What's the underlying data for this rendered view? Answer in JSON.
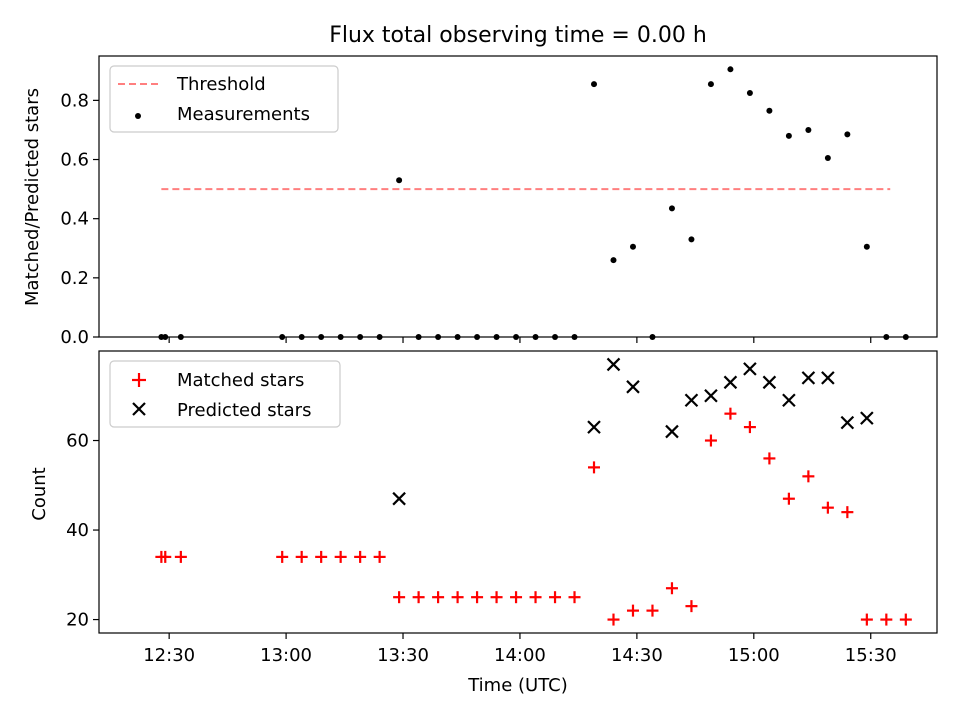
{
  "chart_data": [
    {
      "type": "scatter",
      "title": "Flux total observing time = 0.00 h",
      "xlabel": "",
      "ylabel": "Matched/Predicted stars",
      "xlim": [
        "12:12",
        "15:47"
      ],
      "ylim": [
        0,
        0.95
      ],
      "y_ticks": [
        0.0,
        0.2,
        0.4,
        0.6,
        0.8
      ],
      "y_tick_labels": [
        "0.0",
        "0.2",
        "0.4",
        "0.6",
        "0.8"
      ],
      "x_ticks": [
        "12:30",
        "13:00",
        "13:30",
        "14:00",
        "14:30",
        "15:00",
        "15:30"
      ],
      "legend_position": "upper-left",
      "series": [
        {
          "name": "Threshold",
          "kind": "line",
          "style": "dashed",
          "color": "#ff7f7f",
          "x": [
            "12:28",
            "15:35"
          ],
          "y": [
            0.5,
            0.5
          ]
        },
        {
          "name": "Measurements",
          "kind": "scatter",
          "marker": "dot",
          "color": "#000000",
          "x": [
            "12:28",
            "12:29",
            "12:33",
            "12:59",
            "13:04",
            "13:09",
            "13:14",
            "13:19",
            "13:24",
            "13:29",
            "13:34",
            "13:39",
            "13:44",
            "13:49",
            "13:54",
            "13:59",
            "14:04",
            "14:09",
            "14:14",
            "14:19",
            "14:24",
            "14:29",
            "14:34",
            "14:39",
            "14:44",
            "14:49",
            "14:54",
            "14:59",
            "15:04",
            "15:09",
            "15:14",
            "15:19",
            "15:24",
            "15:29",
            "15:34",
            "15:39"
          ],
          "y": [
            0.0,
            0.0,
            0.0,
            0.0,
            0.0,
            0.0,
            0.0,
            0.0,
            0.0,
            0.53,
            0.0,
            0.0,
            0.0,
            0.0,
            0.0,
            0.0,
            0.0,
            0.0,
            0.0,
            0.855,
            0.26,
            0.305,
            0.0,
            0.435,
            0.33,
            0.855,
            0.905,
            0.825,
            0.765,
            0.68,
            0.7,
            0.605,
            0.685,
            0.305,
            0.0,
            0.0
          ]
        }
      ]
    },
    {
      "type": "scatter",
      "title": "",
      "xlabel": "Time (UTC)",
      "ylabel": "Count",
      "xlim": [
        "12:12",
        "15:47"
      ],
      "ylim": [
        17,
        80
      ],
      "y_ticks": [
        20,
        40,
        60
      ],
      "y_tick_labels": [
        "20",
        "40",
        "60"
      ],
      "x_ticks": [
        "12:30",
        "13:00",
        "13:30",
        "14:00",
        "14:30",
        "15:00",
        "15:30"
      ],
      "x_tick_labels": [
        "12:30",
        "13:00",
        "13:30",
        "14:00",
        "14:30",
        "15:00",
        "15:30"
      ],
      "legend_position": "upper-left",
      "series": [
        {
          "name": "Matched stars",
          "kind": "scatter",
          "marker": "plus",
          "color": "#ff0000",
          "x": [
            "12:28",
            "12:29",
            "12:33",
            "12:59",
            "13:04",
            "13:09",
            "13:14",
            "13:19",
            "13:24",
            "13:29",
            "13:34",
            "13:39",
            "13:44",
            "13:49",
            "13:54",
            "13:59",
            "14:04",
            "14:09",
            "14:14",
            "14:19",
            "14:24",
            "14:29",
            "14:34",
            "14:39",
            "14:44",
            "14:49",
            "14:54",
            "14:59",
            "15:04",
            "15:09",
            "15:14",
            "15:19",
            "15:24",
            "15:29",
            "15:34",
            "15:39"
          ],
          "y": [
            34,
            34,
            34,
            34,
            34,
            34,
            34,
            34,
            34,
            25,
            25,
            25,
            25,
            25,
            25,
            25,
            25,
            25,
            25,
            54,
            20,
            22,
            22,
            27,
            23,
            60,
            66,
            63,
            56,
            47,
            52,
            45,
            44,
            20,
            20,
            20
          ]
        },
        {
          "name": "Predicted stars",
          "kind": "scatter",
          "marker": "x",
          "color": "#000000",
          "x": [
            "13:29",
            "14:19",
            "14:24",
            "14:29",
            "14:39",
            "14:44",
            "14:49",
            "14:54",
            "14:59",
            "15:04",
            "15:09",
            "15:14",
            "15:19",
            "15:24",
            "15:29"
          ],
          "y": [
            47,
            63,
            77,
            72,
            62,
            69,
            70,
            73,
            76,
            73,
            69,
            74,
            74,
            64,
            65
          ]
        }
      ]
    }
  ]
}
